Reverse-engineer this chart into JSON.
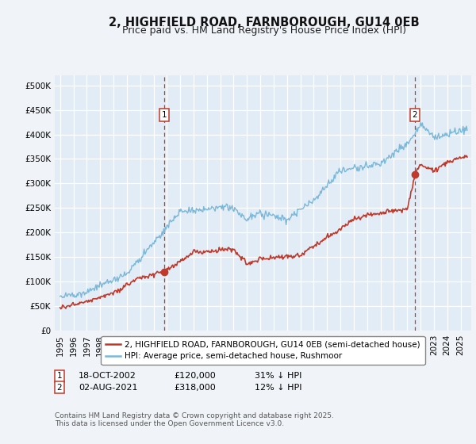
{
  "title": "2, HIGHFIELD ROAD, FARNBOROUGH, GU14 0EB",
  "subtitle": "Price paid vs. HM Land Registry's House Price Index (HPI)",
  "ylim": [
    0,
    520000
  ],
  "yticks": [
    0,
    50000,
    100000,
    150000,
    200000,
    250000,
    300000,
    350000,
    400000,
    450000,
    500000
  ],
  "ytick_labels": [
    "£0",
    "£50K",
    "£100K",
    "£150K",
    "£200K",
    "£250K",
    "£300K",
    "£350K",
    "£400K",
    "£450K",
    "£500K"
  ],
  "xlim": [
    1994.6,
    2025.8
  ],
  "background_color": "#f0f4f8",
  "plot_bg_color": "#e2ecf6",
  "grid_color": "#ffffff",
  "hpi_color": "#7ab8d9",
  "price_color": "#c0392b",
  "marker_color": "#c0392b",
  "vline_color": "#c0392b",
  "transaction1_x": 2002.8,
  "transaction1_y": 120000,
  "transaction1_date": "18-OCT-2002",
  "transaction1_price": "£120,000",
  "transaction1_pct": "31% ↓ HPI",
  "transaction2_x": 2021.58,
  "transaction2_y": 318000,
  "transaction2_date": "02-AUG-2021",
  "transaction2_price": "£318,000",
  "transaction2_pct": "12% ↓ HPI",
  "legend_label_price": "2, HIGHFIELD ROAD, FARNBOROUGH, GU14 0EB (semi-detached house)",
  "legend_label_hpi": "HPI: Average price, semi-detached house, Rushmoor",
  "footnote": "Contains HM Land Registry data © Crown copyright and database right 2025.\nThis data is licensed under the Open Government Licence v3.0.",
  "title_fontsize": 10.5,
  "subtitle_fontsize": 9,
  "tick_fontsize": 7.5,
  "legend_fontsize": 7.5,
  "footnote_fontsize": 6.5
}
